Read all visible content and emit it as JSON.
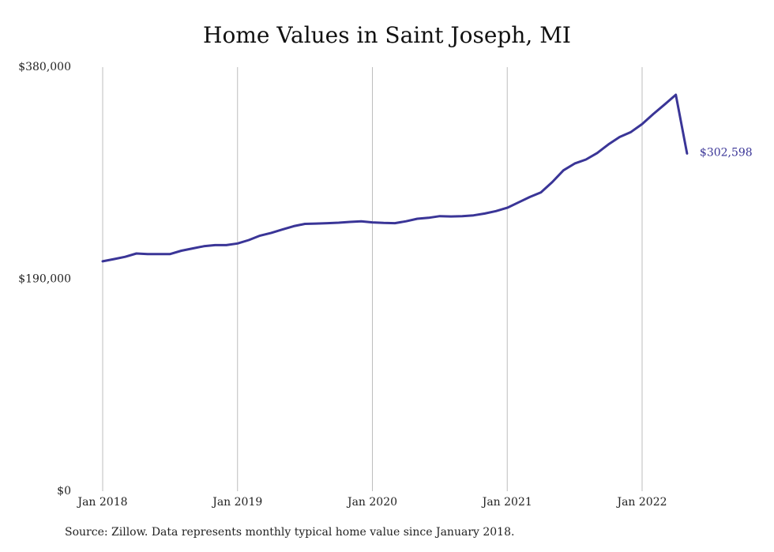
{
  "chart_data": {
    "type": "line",
    "title": "Home Values in Saint Joseph, MI",
    "xlabel": "",
    "ylabel": "",
    "ylim": [
      0,
      380000
    ],
    "y_ticks": [
      {
        "value": 0,
        "label": "$0"
      },
      {
        "value": 190000,
        "label": "$190,000"
      },
      {
        "value": 380000,
        "label": "$380,000"
      }
    ],
    "x_ticks": [
      {
        "value": "2018-01",
        "label": "Jan 2018"
      },
      {
        "value": "2019-01",
        "label": "Jan 2019"
      },
      {
        "value": "2020-01",
        "label": "Jan 2020"
      },
      {
        "value": "2021-01",
        "label": "Jan 2021"
      },
      {
        "value": "2022-01",
        "label": "Jan 2022"
      }
    ],
    "grid": "vertical",
    "line_color": "#3a3597",
    "end_label": "$302,598",
    "series": [
      {
        "x": [
          "2018-01",
          "2018-02",
          "2018-03",
          "2018-04",
          "2018-05",
          "2018-06",
          "2018-07",
          "2018-08",
          "2018-09",
          "2018-10",
          "2018-11",
          "2018-12",
          "2019-01",
          "2019-02",
          "2019-03",
          "2019-04",
          "2019-05",
          "2019-06",
          "2019-07",
          "2019-08",
          "2019-09",
          "2019-10",
          "2019-11",
          "2019-12",
          "2020-01",
          "2020-02",
          "2020-03",
          "2020-04",
          "2020-05",
          "2020-06",
          "2020-07",
          "2020-08",
          "2020-09",
          "2020-10",
          "2020-11",
          "2020-12",
          "2021-01",
          "2021-02",
          "2021-03",
          "2021-04",
          "2021-05",
          "2021-06",
          "2021-07",
          "2021-08",
          "2021-09",
          "2021-10",
          "2021-11",
          "2021-12",
          "2022-01",
          "2022-02",
          "2022-03",
          "2022-04",
          "2022-05"
        ],
        "values": [
          206000,
          208000,
          210000,
          213000,
          212500,
          212500,
          212500,
          215500,
          217500,
          219500,
          220500,
          220500,
          222000,
          225000,
          229000,
          231500,
          234500,
          237500,
          239500,
          239800,
          240200,
          240600,
          241300,
          241800,
          240900,
          240400,
          240200,
          241900,
          244100,
          245000,
          246500,
          246200,
          246500,
          247200,
          248800,
          251000,
          254000,
          258800,
          263600,
          267800,
          277000,
          287500,
          293600,
          297200,
          303000,
          310700,
          317400,
          321800,
          329000,
          338000,
          346500,
          355200,
          302598
        ]
      }
    ]
  },
  "footer": {
    "source": "Source: Zillow. Data represents monthly typical home value since January 2018."
  }
}
